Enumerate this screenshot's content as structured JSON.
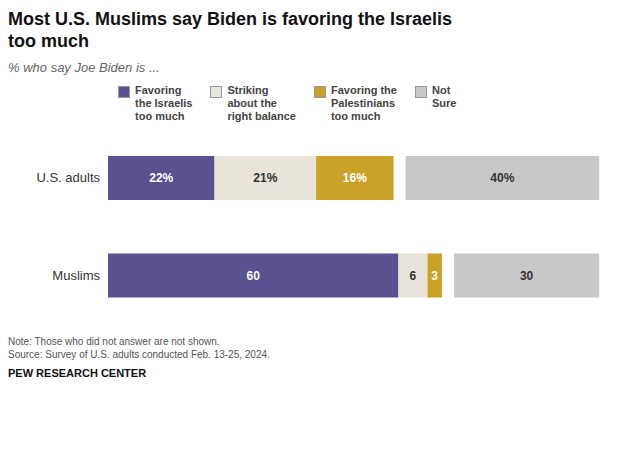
{
  "chart_data": {
    "type": "bar",
    "orientation": "horizontal",
    "stacked": true,
    "title": "Most U.S. Muslims say Biden is favoring the Israelis\ntoo much",
    "subtitle": "% who say Joe Biden is ...",
    "categories": [
      "U.S. adults",
      "Muslims"
    ],
    "series": [
      {
        "name": "Favoring\nthe Israelis\ntoo much",
        "color": "#5a5191",
        "values": [
          22,
          60
        ],
        "value_labels": [
          "22%",
          "60"
        ]
      },
      {
        "name": "Striking\nabout the\nright balance",
        "color": "#e8e4d9",
        "values": [
          21,
          6
        ],
        "value_labels": [
          "21%",
          "6"
        ]
      },
      {
        "name": "Favoring the\nPalestinians\ntoo much",
        "color": "#c9a227",
        "values": [
          16,
          3
        ],
        "value_labels": [
          "16%",
          "3"
        ]
      },
      {
        "name": "Not\nSure",
        "color": "#c8c8c8",
        "values": [
          40,
          30
        ],
        "value_labels": [
          "40%",
          "30"
        ]
      }
    ],
    "xlim": [
      0,
      100
    ],
    "tick_labels": "y",
    "grid": false,
    "data_labels": true,
    "legend": "top",
    "annotations": [
      "Note: Those who did not answer are not shown.\nSource: Survey of U.S. adults conducted Feb. 13-25, 2024.",
      "PEW RESEARCH CENTER"
    ]
  }
}
